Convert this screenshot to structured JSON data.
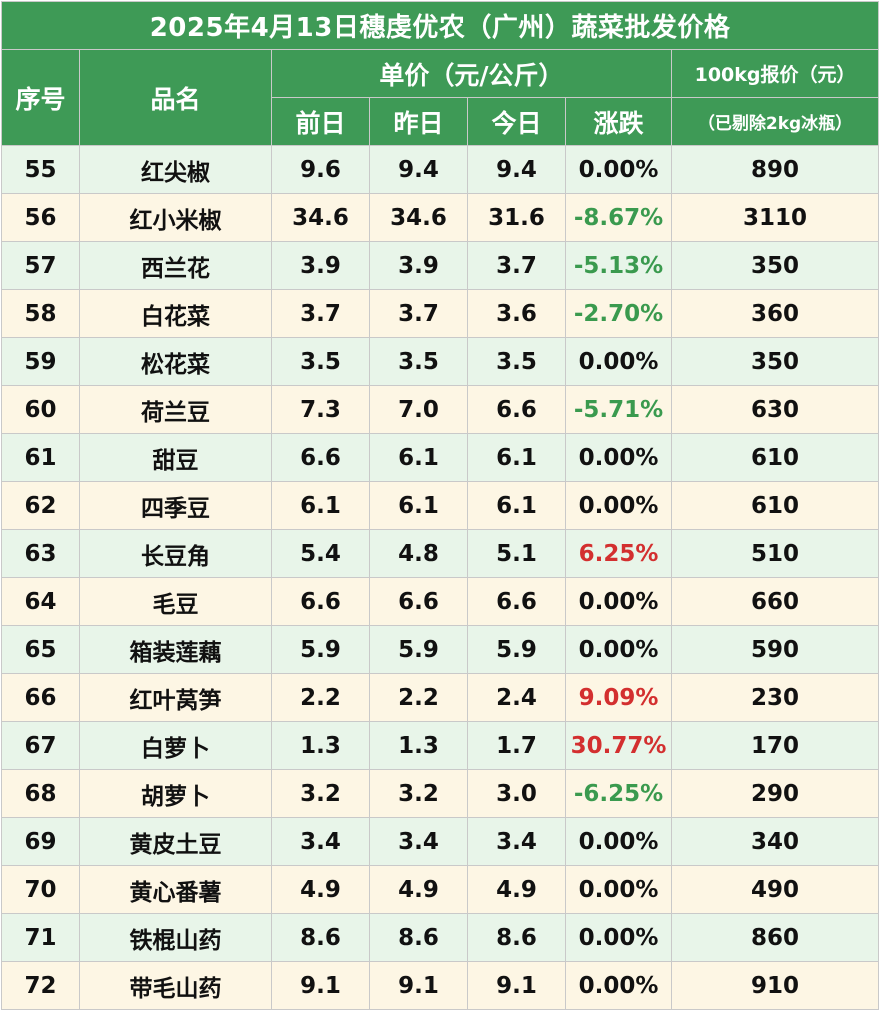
{
  "title": "2025年4月13日穗虔优农（广州）蔬菜批发价格",
  "headers": {
    "seq": "序号",
    "name": "品名",
    "unit_price": "单价（元/公斤）",
    "prev2": "前日",
    "prev1": "昨日",
    "today": "今日",
    "change": "涨跌",
    "quote": "100kg报价（元）",
    "quote_note": "（已剔除2kg冰瓶）"
  },
  "colors": {
    "header_bg": "#3e9a56",
    "row_green": "#e8f5e9",
    "row_cream": "#fdf6e4",
    "down": "#3a9a4e",
    "up": "#d32f2f"
  },
  "rows": [
    {
      "seq": "55",
      "name": "红尖椒",
      "prev2": "9.6",
      "prev1": "9.4",
      "today": "9.4",
      "change": "0.00%",
      "trend": "flat",
      "quote": "890"
    },
    {
      "seq": "56",
      "name": "红小米椒",
      "prev2": "34.6",
      "prev1": "34.6",
      "today": "31.6",
      "change": "-8.67%",
      "trend": "down",
      "quote": "3110"
    },
    {
      "seq": "57",
      "name": "西兰花",
      "prev2": "3.9",
      "prev1": "3.9",
      "today": "3.7",
      "change": "-5.13%",
      "trend": "down",
      "quote": "350"
    },
    {
      "seq": "58",
      "name": "白花菜",
      "prev2": "3.7",
      "prev1": "3.7",
      "today": "3.6",
      "change": "-2.70%",
      "trend": "down",
      "quote": "360"
    },
    {
      "seq": "59",
      "name": "松花菜",
      "prev2": "3.5",
      "prev1": "3.5",
      "today": "3.5",
      "change": "0.00%",
      "trend": "flat",
      "quote": "350"
    },
    {
      "seq": "60",
      "name": "荷兰豆",
      "prev2": "7.3",
      "prev1": "7.0",
      "today": "6.6",
      "change": "-5.71%",
      "trend": "down",
      "quote": "630"
    },
    {
      "seq": "61",
      "name": "甜豆",
      "prev2": "6.6",
      "prev1": "6.1",
      "today": "6.1",
      "change": "0.00%",
      "trend": "flat",
      "quote": "610"
    },
    {
      "seq": "62",
      "name": "四季豆",
      "prev2": "6.1",
      "prev1": "6.1",
      "today": "6.1",
      "change": "0.00%",
      "trend": "flat",
      "quote": "610"
    },
    {
      "seq": "63",
      "name": "长豆角",
      "prev2": "5.4",
      "prev1": "4.8",
      "today": "5.1",
      "change": "6.25%",
      "trend": "up",
      "quote": "510"
    },
    {
      "seq": "64",
      "name": "毛豆",
      "prev2": "6.6",
      "prev1": "6.6",
      "today": "6.6",
      "change": "0.00%",
      "trend": "flat",
      "quote": "660"
    },
    {
      "seq": "65",
      "name": "箱装莲藕",
      "prev2": "5.9",
      "prev1": "5.9",
      "today": "5.9",
      "change": "0.00%",
      "trend": "flat",
      "quote": "590"
    },
    {
      "seq": "66",
      "name": "红叶莴笋",
      "prev2": "2.2",
      "prev1": "2.2",
      "today": "2.4",
      "change": "9.09%",
      "trend": "up",
      "quote": "230"
    },
    {
      "seq": "67",
      "name": "白萝卜",
      "prev2": "1.3",
      "prev1": "1.3",
      "today": "1.7",
      "change": "30.77%",
      "trend": "up",
      "quote": "170"
    },
    {
      "seq": "68",
      "name": "胡萝卜",
      "prev2": "3.2",
      "prev1": "3.2",
      "today": "3.0",
      "change": "-6.25%",
      "trend": "down",
      "quote": "290"
    },
    {
      "seq": "69",
      "name": "黄皮土豆",
      "prev2": "3.4",
      "prev1": "3.4",
      "today": "3.4",
      "change": "0.00%",
      "trend": "flat",
      "quote": "340"
    },
    {
      "seq": "70",
      "name": "黄心番薯",
      "prev2": "4.9",
      "prev1": "4.9",
      "today": "4.9",
      "change": "0.00%",
      "trend": "flat",
      "quote": "490"
    },
    {
      "seq": "71",
      "name": "铁棍山药",
      "prev2": "8.6",
      "prev1": "8.6",
      "today": "8.6",
      "change": "0.00%",
      "trend": "flat",
      "quote": "860"
    },
    {
      "seq": "72",
      "name": "带毛山药",
      "prev2": "9.1",
      "prev1": "9.1",
      "today": "9.1",
      "change": "0.00%",
      "trend": "flat",
      "quote": "910"
    }
  ]
}
